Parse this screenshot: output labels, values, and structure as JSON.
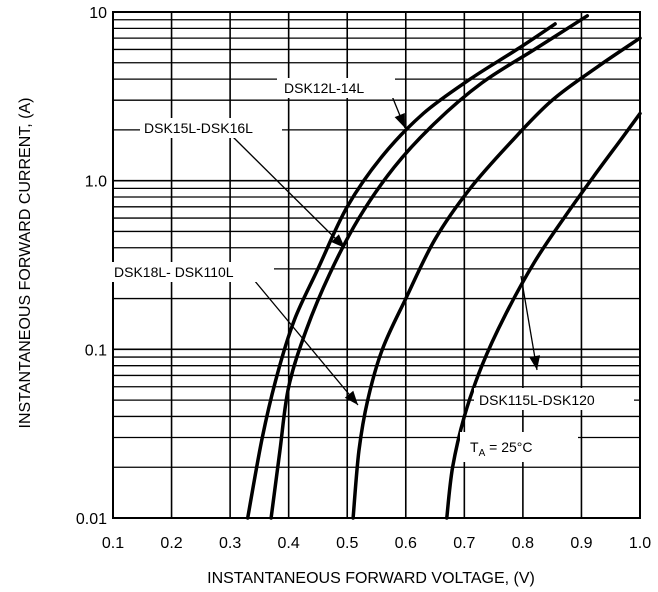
{
  "chart_data": {
    "type": "line",
    "title": "",
    "xlabel": "INSTANTANEOUS FORWARD VOLTAGE, (V)",
    "ylabel": "INSTANTANEOUS FORWARD CURRENT, (A)",
    "x_scale": "linear",
    "y_scale": "log",
    "xlim": [
      0.1,
      1.0
    ],
    "ylim": [
      0.01,
      10
    ],
    "grid": true,
    "x_ticks": [
      "0.1",
      "0.2",
      "0.3",
      "0.4",
      "0.5",
      "0.6",
      "0.7",
      "0.8",
      "0.9",
      "1.0"
    ],
    "y_ticks": [
      {
        "value": 10,
        "label": "10"
      },
      {
        "value": 1,
        "label": "1.0"
      },
      {
        "value": 0.1,
        "label": "0.1"
      },
      {
        "value": 0.01,
        "label": "0.01"
      }
    ],
    "series": [
      {
        "name": "DSK12L-14L",
        "x": [
          0.33,
          0.355,
          0.38,
          0.41,
          0.45,
          0.5,
          0.56,
          0.63,
          0.71,
          0.79,
          0.855
        ],
        "y": [
          0.01,
          0.03,
          0.07,
          0.15,
          0.3,
          0.7,
          1.4,
          2.5,
          4.0,
          6.0,
          8.5
        ]
      },
      {
        "name": "DSK15L-DSK16L",
        "x": [
          0.37,
          0.385,
          0.4,
          0.43,
          0.47,
          0.52,
          0.58,
          0.65,
          0.73,
          0.82,
          0.91
        ],
        "y": [
          0.01,
          0.025,
          0.06,
          0.13,
          0.28,
          0.6,
          1.2,
          2.2,
          3.8,
          6.0,
          9.5
        ]
      },
      {
        "name": "DSK18L- DSK110L",
        "x": [
          0.51,
          0.52,
          0.535,
          0.56,
          0.6,
          0.65,
          0.71,
          0.78,
          0.85,
          0.93,
          1.0
        ],
        "y": [
          0.01,
          0.025,
          0.05,
          0.1,
          0.2,
          0.45,
          0.9,
          1.7,
          3.0,
          4.8,
          7.0
        ]
      },
      {
        "name": "DSK115L-DSK120",
        "x": [
          0.67,
          0.68,
          0.7,
          0.73,
          0.77,
          0.82,
          0.87,
          0.92,
          0.97,
          1.0
        ],
        "y": [
          0.01,
          0.02,
          0.04,
          0.08,
          0.16,
          0.33,
          0.6,
          1.05,
          1.8,
          2.5
        ]
      }
    ],
    "annotations": {
      "series_labels": [
        "DSK12L-14L",
        "DSK15L-DSK16L",
        "DSK18L- DSK110L",
        "DSK115L-DSK120"
      ],
      "condition_main": "T",
      "condition_sub": "A",
      "condition_rest": " = 25°C"
    },
    "line_color": "#000000"
  }
}
